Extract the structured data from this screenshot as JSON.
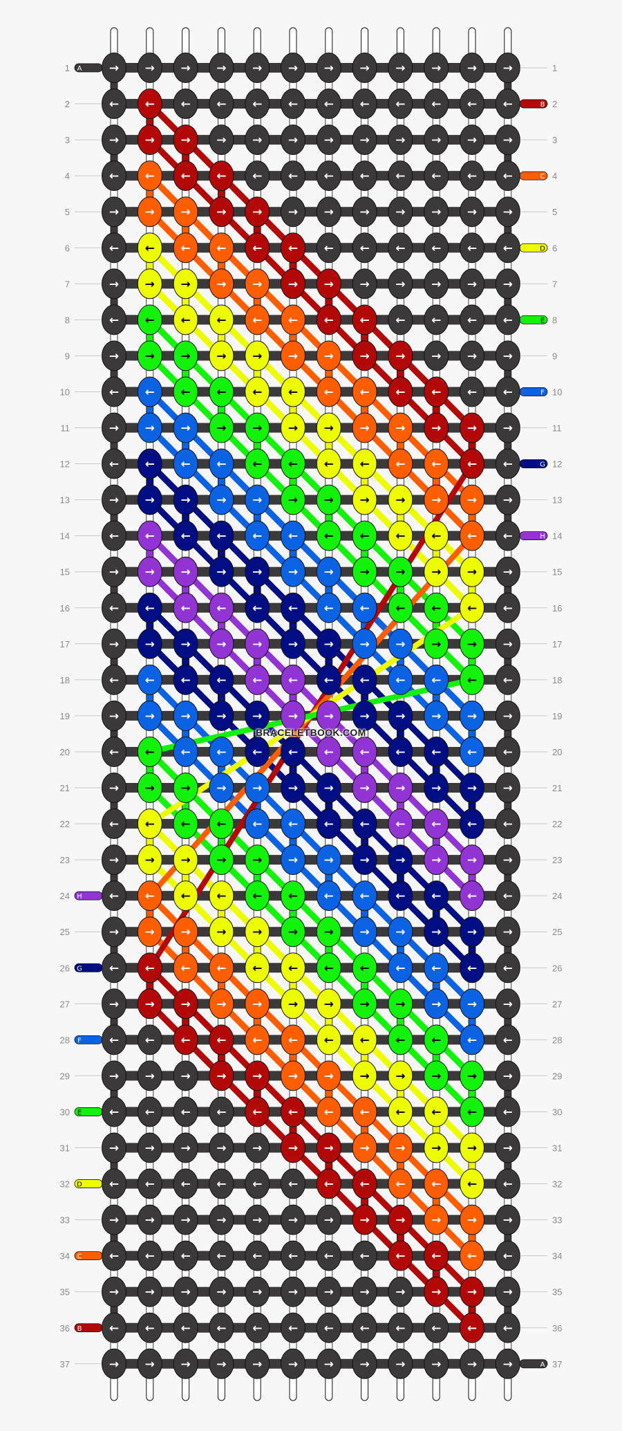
{
  "watermark": "BRACELETBOOK.COM",
  "palette": {
    "K": "#3b393a",
    "R": "#b30808",
    "O": "#ff5e00",
    "Y": "#eefc00",
    "G": "#12f20a",
    "B": "#0b63e3",
    "N": "#010d82",
    "P": "#9233d4"
  },
  "strings": [
    {
      "label": "A",
      "color": "K",
      "start_row": 1,
      "start_side": "left",
      "end_row": 37,
      "end_side": "right"
    },
    {
      "label": "B",
      "color": "R",
      "start_row": 2,
      "start_side": "right",
      "end_row": 36,
      "end_side": "left"
    },
    {
      "label": "C",
      "color": "O",
      "start_row": 4,
      "start_side": "right",
      "end_row": 34,
      "end_side": "left"
    },
    {
      "label": "D",
      "color": "Y",
      "start_row": 6,
      "start_side": "right",
      "end_row": 32,
      "end_side": "left"
    },
    {
      "label": "E",
      "color": "G",
      "start_row": 8,
      "start_side": "right",
      "end_row": 30,
      "end_side": "left"
    },
    {
      "label": "F",
      "color": "B",
      "start_row": 10,
      "start_side": "right",
      "end_row": 28,
      "end_side": "left"
    },
    {
      "label": "G",
      "color": "N",
      "start_row": 12,
      "start_side": "right",
      "end_row": 26,
      "end_side": "left"
    },
    {
      "label": "H",
      "color": "P",
      "start_row": 14,
      "start_side": "right",
      "end_row": 24,
      "end_side": "left"
    }
  ],
  "crossing_threads": [
    {
      "color": "R",
      "from": [
        12,
        11
      ],
      "to": [
        26,
        2
      ]
    },
    {
      "color": "O",
      "from": [
        14,
        11
      ],
      "to": [
        24,
        2
      ]
    },
    {
      "color": "Y",
      "from": [
        16,
        11
      ],
      "to": [
        22,
        2
      ]
    },
    {
      "color": "G",
      "from": [
        18,
        11
      ],
      "to": [
        20,
        2
      ]
    }
  ],
  "rows": [
    {
      "n": "1",
      "arrow": "→",
      "knots": "KKKKKKKKKKKK"
    },
    {
      "n": "2",
      "arrow": "←",
      "knots": "KRKKKKKKKKKK"
    },
    {
      "n": "3",
      "arrow": "→",
      "knots": "KRRKKKKKKKKK"
    },
    {
      "n": "4",
      "arrow": "←",
      "knots": "KORRKKKKKKKK"
    },
    {
      "n": "5",
      "arrow": "→",
      "knots": "KOORRKKKKKKK"
    },
    {
      "n": "6",
      "arrow": "←",
      "knots": "KYOORRKKKKKK"
    },
    {
      "n": "7",
      "arrow": "→",
      "knots": "KYYOORRKKKKK"
    },
    {
      "n": "8",
      "arrow": "←",
      "knots": "KGYYOORRKKKK"
    },
    {
      "n": "9",
      "arrow": "→",
      "knots": "KGGYYOORRKKK"
    },
    {
      "n": "10",
      "arrow": "←",
      "knots": "KBGGYYOORRKK"
    },
    {
      "n": "11",
      "arrow": "→",
      "knots": "KBBGGYYOORRK"
    },
    {
      "n": "12",
      "arrow": "←",
      "knots": "KNBBGGYYOORK"
    },
    {
      "n": "13",
      "arrow": "→",
      "knots": "KNNBBGGYYOOK"
    },
    {
      "n": "14",
      "arrow": "←",
      "knots": "KPNNBBGGYYOK"
    },
    {
      "n": "15",
      "arrow": "→",
      "knots": "KPPNNBBGGYYK"
    },
    {
      "n": "16",
      "arrow": "←",
      "knots": "KNPPNNBBGGYK"
    },
    {
      "n": "17",
      "arrow": "→",
      "knots": "KNNPPNNBBGGK"
    },
    {
      "n": "18",
      "arrow": "←",
      "knots": "KBNNPPNNBBGK"
    },
    {
      "n": "19",
      "arrow": "→",
      "knots": "KBBNNPPNNBBK"
    },
    {
      "n": "20",
      "arrow": "←",
      "knots": "KGBBNNPPNNBK"
    },
    {
      "n": "21",
      "arrow": "→",
      "knots": "KGGBBNNPPNNK"
    },
    {
      "n": "22",
      "arrow": "←",
      "knots": "KYGGBBNNPPNK"
    },
    {
      "n": "23",
      "arrow": "→",
      "knots": "KYYGGBBNNPPK"
    },
    {
      "n": "24",
      "arrow": "←",
      "knots": "KOYYGGBBNNPK"
    },
    {
      "n": "25",
      "arrow": "→",
      "knots": "KOOYYGGBBNNK"
    },
    {
      "n": "26",
      "arrow": "←",
      "knots": "KROOYYGGBBNK"
    },
    {
      "n": "27",
      "arrow": "→",
      "knots": "KRROOYYGGBBK"
    },
    {
      "n": "28",
      "arrow": "←",
      "knots": "KKRROOYYGGBK"
    },
    {
      "n": "29",
      "arrow": "→",
      "knots": "KKKRROOYYGGK"
    },
    {
      "n": "30",
      "arrow": "←",
      "knots": "KKKKRROOYYGK"
    },
    {
      "n": "31",
      "arrow": "→",
      "knots": "KKKKKRROOYYK"
    },
    {
      "n": "32",
      "arrow": "←",
      "knots": "KKKKKKRROOYK"
    },
    {
      "n": "33",
      "arrow": "→",
      "knots": "KKKKKKKRROOK"
    },
    {
      "n": "34",
      "arrow": "←",
      "knots": "KKKKKKKKRROK"
    },
    {
      "n": "35",
      "arrow": "→",
      "knots": "KKKKKKKKKRRK"
    },
    {
      "n": "36",
      "arrow": "←",
      "knots": "KKKKKKKKKKRK"
    },
    {
      "n": "37",
      "arrow": "→",
      "knots": "KKKKKKKKKKKK"
    }
  ]
}
